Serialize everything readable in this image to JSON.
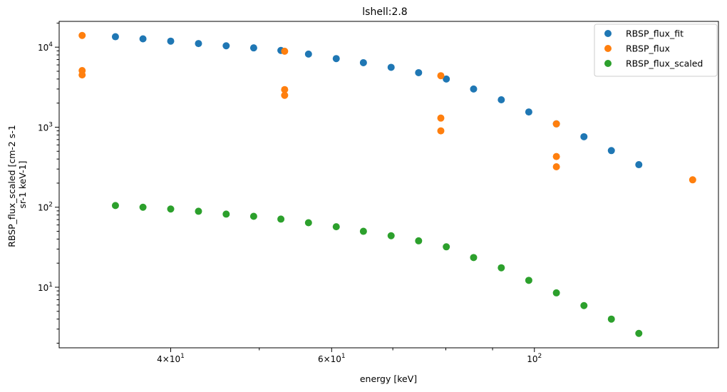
{
  "chart_data": {
    "type": "scatter",
    "title": "lshell:2.8",
    "xlabel": "energy [keV]",
    "ylabel_lines": [
      "RBSP_flux_scaled [cm-2 s-1",
      "sr-1 keV-1]"
    ],
    "xscale": "log",
    "yscale": "log",
    "xlim": [
      30.2,
      159
    ],
    "ylim": [
      1.75,
      21000
    ],
    "grid": false,
    "legend_position": "top-right",
    "x_ticks": [
      {
        "value": 40,
        "base": "4",
        "exp": "1"
      },
      {
        "value": 60,
        "base": "6",
        "exp": "1"
      },
      {
        "value": 100,
        "base": "10",
        "exp": "2"
      }
    ],
    "y_ticks": [
      {
        "value": 10,
        "base": "10",
        "exp": "1"
      },
      {
        "value": 100,
        "base": "10",
        "exp": "2"
      },
      {
        "value": 1000,
        "base": "10",
        "exp": "3"
      },
      {
        "value": 10000,
        "base": "10",
        "exp": "4"
      }
    ],
    "series": [
      {
        "name": "RBSP_flux_fit",
        "color": "#1f77b4",
        "x": [
          34.8,
          37.3,
          40.0,
          42.9,
          46.0,
          49.3,
          52.8,
          56.6,
          60.7,
          65.0,
          69.7,
          74.7,
          80.1,
          85.8,
          92.0,
          98.6,
          105.7,
          113.3,
          121.4,
          130.1
        ],
        "y": [
          13500,
          12700,
          11900,
          11100,
          10400,
          9800,
          9100,
          8200,
          7200,
          6400,
          5600,
          4800,
          4000,
          3000,
          2200,
          1550,
          1100,
          760,
          510,
          340
        ]
      },
      {
        "name": "RBSP_flux",
        "color": "#ff7f0e",
        "x": [
          32.0,
          32.0,
          32.0,
          53.3,
          53.3,
          53.3,
          79.0,
          79.0,
          79.0,
          105.7,
          105.7,
          105.7,
          149.0
        ],
        "y": [
          14000,
          5100,
          4500,
          8900,
          2950,
          2500,
          4400,
          1300,
          900,
          1100,
          430,
          320,
          220
        ]
      },
      {
        "name": "RBSP_flux_scaled",
        "color": "#2ca02c",
        "x": [
          34.8,
          37.3,
          40.0,
          42.9,
          46.0,
          49.3,
          52.8,
          56.6,
          60.7,
          65.0,
          69.7,
          74.7,
          80.1,
          85.8,
          92.0,
          98.6,
          105.7,
          113.3,
          121.4,
          130.1
        ],
        "y": [
          105,
          100,
          95,
          89,
          82,
          77,
          71,
          64,
          57,
          50,
          44,
          38,
          32,
          23.5,
          17.5,
          12.2,
          8.5,
          5.9,
          4.0,
          2.65
        ]
      }
    ]
  }
}
